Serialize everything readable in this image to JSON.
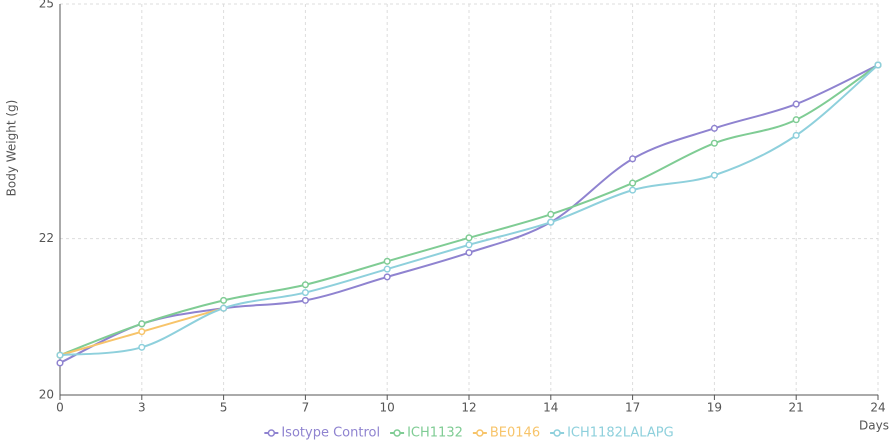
{
  "chart_data": {
    "type": "line",
    "y_label": "Body Weight (g)",
    "x_label": "Days",
    "categories": [
      "0",
      "3",
      "5",
      "7",
      "10",
      "12",
      "14",
      "17",
      "19",
      "21",
      "24"
    ],
    "series": [
      {
        "name": "Isotype Control",
        "color": "#8f83d0",
        "values": [
          20.41,
          20.91,
          21.11,
          21.21,
          21.51,
          21.82,
          22.21,
          23.02,
          23.41,
          23.72,
          24.22
        ]
      },
      {
        "name": "ICH1132",
        "color": "#7fcc94",
        "values": [
          20.51,
          20.91,
          21.21,
          21.41,
          21.71,
          22.01,
          22.31,
          22.71,
          23.22,
          23.52,
          24.22
        ]
      },
      {
        "name": "BE0146",
        "color": "#f7c46a",
        "values": [
          20.51,
          20.81,
          21.11,
          null,
          null,
          null,
          null,
          null,
          null,
          null,
          null
        ]
      },
      {
        "name": "ICH1182LALAPG",
        "color": "#8ed0dc",
        "values": [
          20.51,
          20.61,
          21.11,
          21.31,
          21.61,
          21.92,
          22.21,
          22.62,
          22.81,
          23.32,
          24.22
        ]
      }
    ],
    "ylim": [
      20,
      25
    ],
    "yticks": [
      20,
      22,
      25
    ],
    "grid": true,
    "legend": "bottom"
  }
}
